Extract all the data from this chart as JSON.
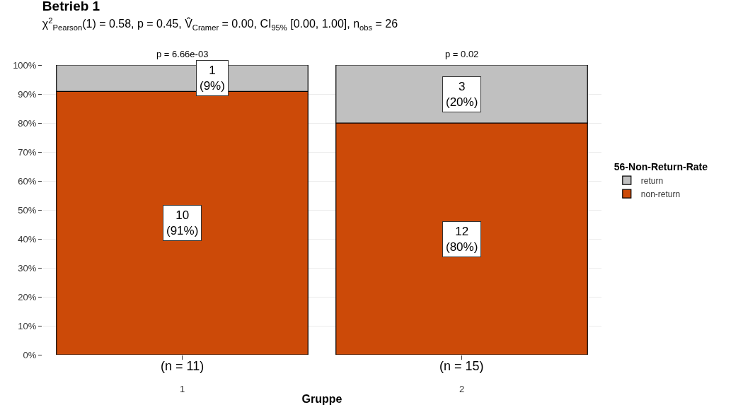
{
  "chart_data": {
    "type": "bar",
    "stacked": true,
    "title": "Betrieb 1",
    "subtitle": "χ$^{2}$$_{Pearson}$(1) = 0.58, p = 0.45, V̂$_{Cramer}$ = 0.00, CI$_{95%}$ [0.00, 1.00], n$_{obs}$ = 26",
    "categories": [
      "1",
      "2"
    ],
    "xlabel": "Gruppe",
    "legend_title": "56-Non-Return-Rate",
    "series": [
      {
        "name": "non-return",
        "color": "#cc4a08",
        "values": [
          90.9,
          80
        ],
        "value_labels": [
          "10\n(91%)",
          "12\n(80%)"
        ]
      },
      {
        "name": "return",
        "color": "#c0c0c0",
        "values": [
          9.1,
          20
        ],
        "value_labels": [
          "1\n(9%)",
          "3\n(20%)"
        ]
      }
    ],
    "ylim": [
      0,
      100
    ],
    "yticks": [
      {
        "value": 0,
        "label": "0%"
      },
      {
        "value": 10,
        "label": "10%"
      },
      {
        "value": 20,
        "label": "20%"
      },
      {
        "value": 30,
        "label": "30%"
      },
      {
        "value": 40,
        "label": "40%"
      },
      {
        "value": 50,
        "label": "50%"
      },
      {
        "value": 60,
        "label": "60%"
      },
      {
        "value": 70,
        "label": "70%"
      },
      {
        "value": 80,
        "label": "80%"
      },
      {
        "value": 90,
        "label": "90%"
      },
      {
        "value": 100,
        "label": "100%"
      }
    ],
    "annotations": [
      {
        "text": "p = 6.66e-03",
        "x": "1",
        "y": 100
      },
      {
        "text": "p = 0.02",
        "x": "2",
        "y": 100
      },
      {
        "text": "(n = 11)",
        "x": "1",
        "y": 0
      },
      {
        "text": "(n = 15)",
        "x": "2",
        "y": 0
      }
    ],
    "grid": "y",
    "legend": "right"
  }
}
